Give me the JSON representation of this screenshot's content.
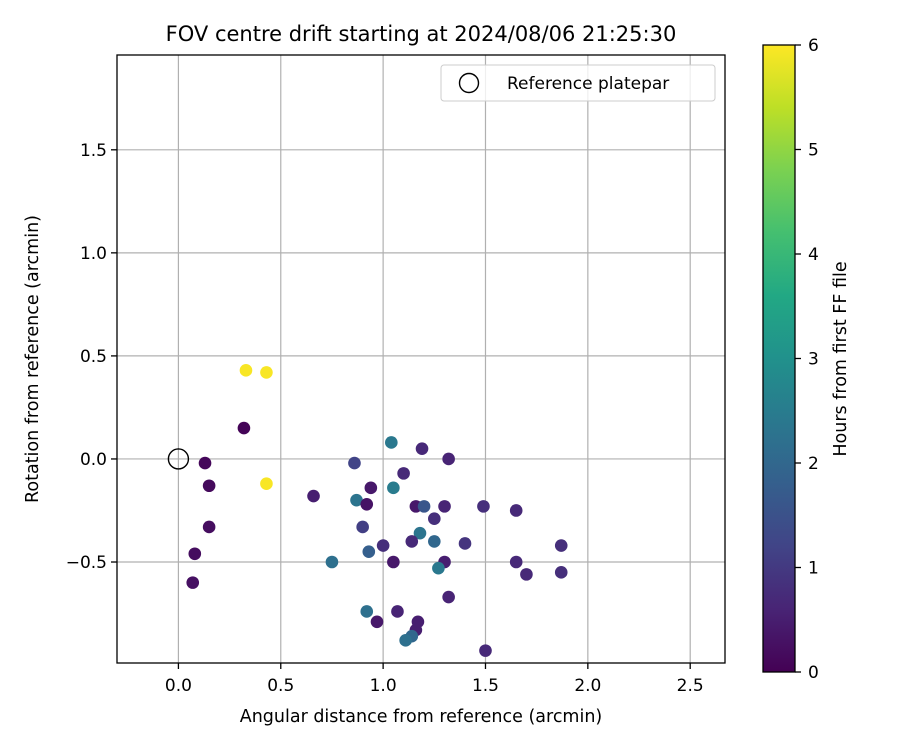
{
  "chart_data": {
    "type": "scatter",
    "title": "FOV centre drift starting at 2024/08/06 21:25:30",
    "xlabel": "Angular distance from reference (arcmin)",
    "ylabel": "Rotation from reference (arcmin)",
    "xlim": [
      -0.3,
      2.67
    ],
    "ylim": [
      -0.99,
      1.96
    ],
    "xticks": [
      "0.0",
      "0.5",
      "1.0",
      "1.5",
      "2.0",
      "2.5"
    ],
    "yticks": [
      "−0.5",
      "0.0",
      "0.5",
      "1.0",
      "1.5"
    ],
    "grid": true,
    "legend": {
      "position": "top-right",
      "entries": [
        "Reference platepar"
      ]
    },
    "reference_point": {
      "x": 0.0,
      "y": 0.0
    },
    "colorbar": {
      "label": "Hours from first FF file",
      "range": [
        0,
        6
      ],
      "ticks": [
        "0",
        "1",
        "2",
        "3",
        "4",
        "5",
        "6"
      ],
      "colormap": "viridis"
    },
    "points": [
      {
        "x": 0.33,
        "y": 0.43,
        "t": 5.95
      },
      {
        "x": 0.43,
        "y": 0.42,
        "t": 5.95
      },
      {
        "x": 0.43,
        "y": -0.12,
        "t": 5.95
      },
      {
        "x": 0.32,
        "y": 0.15,
        "t": 0.05
      },
      {
        "x": 0.13,
        "y": -0.02,
        "t": 0.1
      },
      {
        "x": 0.15,
        "y": -0.13,
        "t": 0.15
      },
      {
        "x": 0.15,
        "y": -0.33,
        "t": 0.2
      },
      {
        "x": 0.08,
        "y": -0.46,
        "t": 0.2
      },
      {
        "x": 0.07,
        "y": -0.6,
        "t": 0.25
      },
      {
        "x": 0.66,
        "y": -0.18,
        "t": 0.5
      },
      {
        "x": 0.86,
        "y": -0.02,
        "t": 1.2
      },
      {
        "x": 1.04,
        "y": 0.08,
        "t": 2.4
      },
      {
        "x": 1.19,
        "y": 0.05,
        "t": 0.7
      },
      {
        "x": 1.32,
        "y": 0.0,
        "t": 0.6
      },
      {
        "x": 1.1,
        "y": -0.07,
        "t": 0.7
      },
      {
        "x": 0.94,
        "y": -0.14,
        "t": 0.4
      },
      {
        "x": 1.05,
        "y": -0.14,
        "t": 2.5
      },
      {
        "x": 0.87,
        "y": -0.2,
        "t": 2.3
      },
      {
        "x": 0.92,
        "y": -0.22,
        "t": 0.3
      },
      {
        "x": 1.16,
        "y": -0.23,
        "t": 0.4
      },
      {
        "x": 1.2,
        "y": -0.23,
        "t": 1.6
      },
      {
        "x": 1.3,
        "y": -0.23,
        "t": 0.6
      },
      {
        "x": 1.49,
        "y": -0.23,
        "t": 0.8
      },
      {
        "x": 1.65,
        "y": -0.25,
        "t": 0.7
      },
      {
        "x": 1.25,
        "y": -0.29,
        "t": 0.8
      },
      {
        "x": 0.9,
        "y": -0.33,
        "t": 1.1
      },
      {
        "x": 1.18,
        "y": -0.36,
        "t": 2.3
      },
      {
        "x": 1.25,
        "y": -0.4,
        "t": 2.0
      },
      {
        "x": 1.14,
        "y": -0.4,
        "t": 0.7
      },
      {
        "x": 1.4,
        "y": -0.41,
        "t": 0.9
      },
      {
        "x": 1.0,
        "y": -0.42,
        "t": 0.8
      },
      {
        "x": 1.87,
        "y": -0.42,
        "t": 0.8
      },
      {
        "x": 0.93,
        "y": -0.45,
        "t": 1.8
      },
      {
        "x": 0.75,
        "y": -0.5,
        "t": 2.2
      },
      {
        "x": 1.05,
        "y": -0.5,
        "t": 0.4
      },
      {
        "x": 1.3,
        "y": -0.5,
        "t": 0.5
      },
      {
        "x": 1.65,
        "y": -0.5,
        "t": 0.7
      },
      {
        "x": 1.27,
        "y": -0.53,
        "t": 2.4
      },
      {
        "x": 1.7,
        "y": -0.56,
        "t": 0.7
      },
      {
        "x": 1.87,
        "y": -0.55,
        "t": 0.8
      },
      {
        "x": 1.32,
        "y": -0.67,
        "t": 0.6
      },
      {
        "x": 0.92,
        "y": -0.74,
        "t": 2.2
      },
      {
        "x": 1.07,
        "y": -0.74,
        "t": 0.6
      },
      {
        "x": 0.97,
        "y": -0.79,
        "t": 0.4
      },
      {
        "x": 1.17,
        "y": -0.79,
        "t": 0.5
      },
      {
        "x": 1.16,
        "y": -0.83,
        "t": 0.5
      },
      {
        "x": 1.14,
        "y": -0.86,
        "t": 2.0
      },
      {
        "x": 1.11,
        "y": -0.88,
        "t": 2.2
      },
      {
        "x": 1.5,
        "y": -0.93,
        "t": 0.7
      }
    ]
  }
}
